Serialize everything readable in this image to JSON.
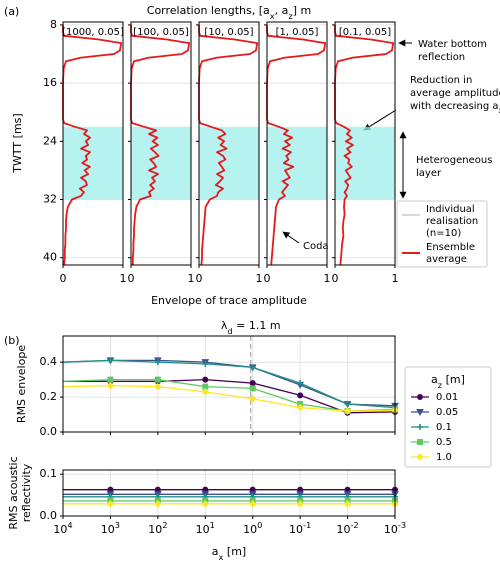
{
  "chart_data": [
    {
      "type": "profile",
      "panel_label": "(a)",
      "title": "Correlation lengths, [a_x, a_z] m",
      "xlabel": "Envelope of trace amplitude",
      "ylabel": "TWTT [ms]",
      "xlim": [
        0,
        1
      ],
      "xticks": [
        0,
        1
      ],
      "ylim": [
        7.6,
        41
      ],
      "yticks": [
        8,
        16,
        24,
        32,
        40
      ],
      "y_inverted": true,
      "grid": true,
      "layer": [
        22,
        32
      ],
      "layer_color": "#9eeeea",
      "color": "#e41a1c",
      "times": [
        8,
        9,
        9.5,
        10,
        10.5,
        11,
        11.5,
        12,
        12.5,
        13,
        14,
        16,
        18,
        20,
        21,
        21.5,
        22,
        22.5,
        23,
        23.5,
        24,
        24.5,
        25,
        25.5,
        26,
        26.5,
        27,
        27.5,
        28,
        28.5,
        29,
        29.5,
        30,
        30.5,
        31,
        31.5,
        32,
        33,
        34,
        35,
        36,
        37,
        38,
        39,
        40,
        41
      ],
      "panels": [
        {
          "title": "[1000, 0.05]",
          "values": [
            0,
            0,
            0.02,
            0.6,
            0.97,
            0.96,
            0.95,
            0.85,
            0.3,
            0.05,
            0.01,
            0,
            0,
            0,
            0,
            0.02,
            0.2,
            0.4,
            0.35,
            0.45,
            0.38,
            0.42,
            0.3,
            0.45,
            0.38,
            0.4,
            0.32,
            0.45,
            0.36,
            0.42,
            0.3,
            0.38,
            0.4,
            0.28,
            0.35,
            0.3,
            0.15,
            0.08,
            0.06,
            0.05,
            0.05,
            0.04,
            0.04,
            0.03,
            0.03,
            0.02
          ]
        },
        {
          "title": "[100, 0.05]",
          "values": [
            0,
            0,
            0.02,
            0.6,
            0.97,
            0.96,
            0.95,
            0.85,
            0.3,
            0.05,
            0.01,
            0,
            0,
            0,
            0,
            0.02,
            0.22,
            0.42,
            0.3,
            0.44,
            0.36,
            0.45,
            0.33,
            0.4,
            0.46,
            0.32,
            0.38,
            0.42,
            0.3,
            0.45,
            0.35,
            0.4,
            0.32,
            0.38,
            0.3,
            0.33,
            0.15,
            0.09,
            0.07,
            0.06,
            0.05,
            0.05,
            0.04,
            0.04,
            0.03,
            0.03
          ]
        },
        {
          "title": "[10, 0.05]",
          "values": [
            0,
            0,
            0.02,
            0.6,
            0.97,
            0.96,
            0.95,
            0.85,
            0.3,
            0.05,
            0.01,
            0,
            0,
            0,
            0,
            0.02,
            0.2,
            0.38,
            0.44,
            0.32,
            0.42,
            0.36,
            0.46,
            0.3,
            0.4,
            0.44,
            0.33,
            0.38,
            0.42,
            0.3,
            0.4,
            0.35,
            0.28,
            0.4,
            0.32,
            0.3,
            0.18,
            0.11,
            0.1,
            0.09,
            0.08,
            0.07,
            0.06,
            0.05,
            0.05,
            0.04
          ]
        },
        {
          "title": "[1, 0.05]",
          "values": [
            0,
            0,
            0.02,
            0.6,
            0.97,
            0.96,
            0.95,
            0.85,
            0.3,
            0.05,
            0.01,
            0,
            0,
            0,
            0,
            0.02,
            0.2,
            0.35,
            0.28,
            0.42,
            0.3,
            0.38,
            0.26,
            0.4,
            0.32,
            0.36,
            0.28,
            0.44,
            0.3,
            0.34,
            0.38,
            0.26,
            0.35,
            0.3,
            0.25,
            0.3,
            0.2,
            0.15,
            0.14,
            0.13,
            0.12,
            0.11,
            0.1,
            0.09,
            0.08,
            0.07
          ]
        },
        {
          "title": "[0.1, 0.05]",
          "values": [
            0,
            0,
            0.02,
            0.6,
            0.97,
            0.96,
            0.95,
            0.85,
            0.3,
            0.05,
            0.01,
            0,
            0,
            0,
            0,
            0.02,
            0.15,
            0.25,
            0.2,
            0.28,
            0.18,
            0.3,
            0.2,
            0.26,
            0.16,
            0.24,
            0.22,
            0.28,
            0.18,
            0.22,
            0.26,
            0.17,
            0.22,
            0.2,
            0.16,
            0.2,
            0.16,
            0.15,
            0.16,
            0.14,
            0.13,
            0.14,
            0.12,
            0.11,
            0.1,
            0.09
          ]
        }
      ],
      "legend": {
        "entries": [
          {
            "lines": [
              "Individual",
              "realisation",
              "(n=10)"
            ],
            "color": "#b0b0b0"
          },
          {
            "lines": [
              "Ensemble",
              "average"
            ],
            "color": "#e41a1c"
          }
        ]
      },
      "annotations": [
        {
          "lines": [
            "Water bottom",
            "reflection"
          ]
        },
        {
          "lines": [
            "Reduction in",
            "average amplitude",
            "with decreasing a_x"
          ]
        },
        {
          "lines": [
            "Heterogeneous",
            "layer"
          ]
        },
        {
          "lines": [
            "Coda"
          ]
        }
      ]
    },
    {
      "type": "line",
      "panel_label": "(b)",
      "ylabel": "RMS envelope",
      "log_x": true,
      "grid": true,
      "xlim": [
        10000,
        0.001
      ],
      "ylim": [
        0,
        0.55
      ],
      "yticks": [
        {
          "value": 0,
          "label": "0.0"
        },
        0.2,
        0.4
      ],
      "vline": {
        "value": 1.1,
        "label": "λ_d = 1.1 m"
      },
      "legend_title": "a_z [m]",
      "x": [
        10000,
        1000,
        100,
        10,
        1,
        0.1,
        0.01,
        0.001
      ],
      "series": [
        {
          "name": "0.01",
          "color": "#440154",
          "marker": "circle",
          "values": [
            0.29,
            0.29,
            0.29,
            0.3,
            0.28,
            0.21,
            0.11,
            0.115
          ]
        },
        {
          "name": "0.05",
          "color": "#3b528b",
          "marker": "triangle",
          "values": [
            0.4,
            0.41,
            0.41,
            0.4,
            0.37,
            0.27,
            0.16,
            0.15
          ]
        },
        {
          "name": "0.1",
          "color": "#21918c",
          "marker": "plus",
          "values": [
            0.4,
            0.41,
            0.4,
            0.39,
            0.37,
            0.28,
            0.16,
            0.14
          ]
        },
        {
          "name": "0.5",
          "color": "#5ec962",
          "marker": "square",
          "values": [
            0.29,
            0.3,
            0.3,
            0.26,
            0.25,
            0.16,
            0.12,
            0.13
          ]
        },
        {
          "name": "1.0",
          "color": "#fde725",
          "marker": "diamond",
          "values": [
            0.26,
            0.265,
            0.26,
            0.23,
            0.19,
            0.14,
            0.12,
            0.125
          ]
        }
      ]
    },
    {
      "type": "line",
      "ylabel": [
        "RMS acoustic",
        "reflectivity"
      ],
      "xlabel": "a_x [m]",
      "log_x": true,
      "grid": true,
      "xlim": [
        10000,
        0.001
      ],
      "xticks": [
        {
          "value": 10000,
          "label": "10^4"
        },
        {
          "value": 1000,
          "label": "10^3"
        },
        {
          "value": 100,
          "label": "10^2"
        },
        {
          "value": 10,
          "label": "10^1"
        },
        {
          "value": 1,
          "label": "10^0"
        },
        {
          "value": 0.1,
          "label": "10^-1"
        },
        {
          "value": 0.01,
          "label": "10^-2"
        },
        {
          "value": 0.001,
          "label": "10^-3"
        }
      ],
      "ylim": [
        0,
        0.11
      ],
      "yticks": [
        {
          "value": 0,
          "label": "0.0"
        },
        0.1
      ],
      "x": [
        10000,
        1000,
        100,
        10,
        1,
        0.1,
        0.01,
        0.001
      ],
      "series": [
        {
          "name": "0.01",
          "color": "#440154",
          "marker": "circle",
          "values": [
            0.063,
            0.063,
            0.063,
            0.063,
            0.063,
            0.063,
            0.063,
            0.063
          ]
        },
        {
          "name": "0.05",
          "color": "#3b528b",
          "marker": "triangle",
          "values": [
            0.052,
            0.052,
            0.052,
            0.052,
            0.052,
            0.052,
            0.052,
            0.052
          ]
        },
        {
          "name": "0.1",
          "color": "#21918c",
          "marker": "plus",
          "values": [
            0.046,
            0.046,
            0.046,
            0.046,
            0.046,
            0.046,
            0.046,
            0.046
          ]
        },
        {
          "name": "0.5",
          "color": "#5ec962",
          "marker": "square",
          "values": [
            0.036,
            0.036,
            0.036,
            0.036,
            0.036,
            0.036,
            0.036,
            0.036
          ]
        },
        {
          "name": "1.0",
          "color": "#fde725",
          "marker": "diamond",
          "values": [
            0.029,
            0.029,
            0.029,
            0.029,
            0.029,
            0.029,
            0.029,
            0.029
          ]
        }
      ]
    }
  ]
}
